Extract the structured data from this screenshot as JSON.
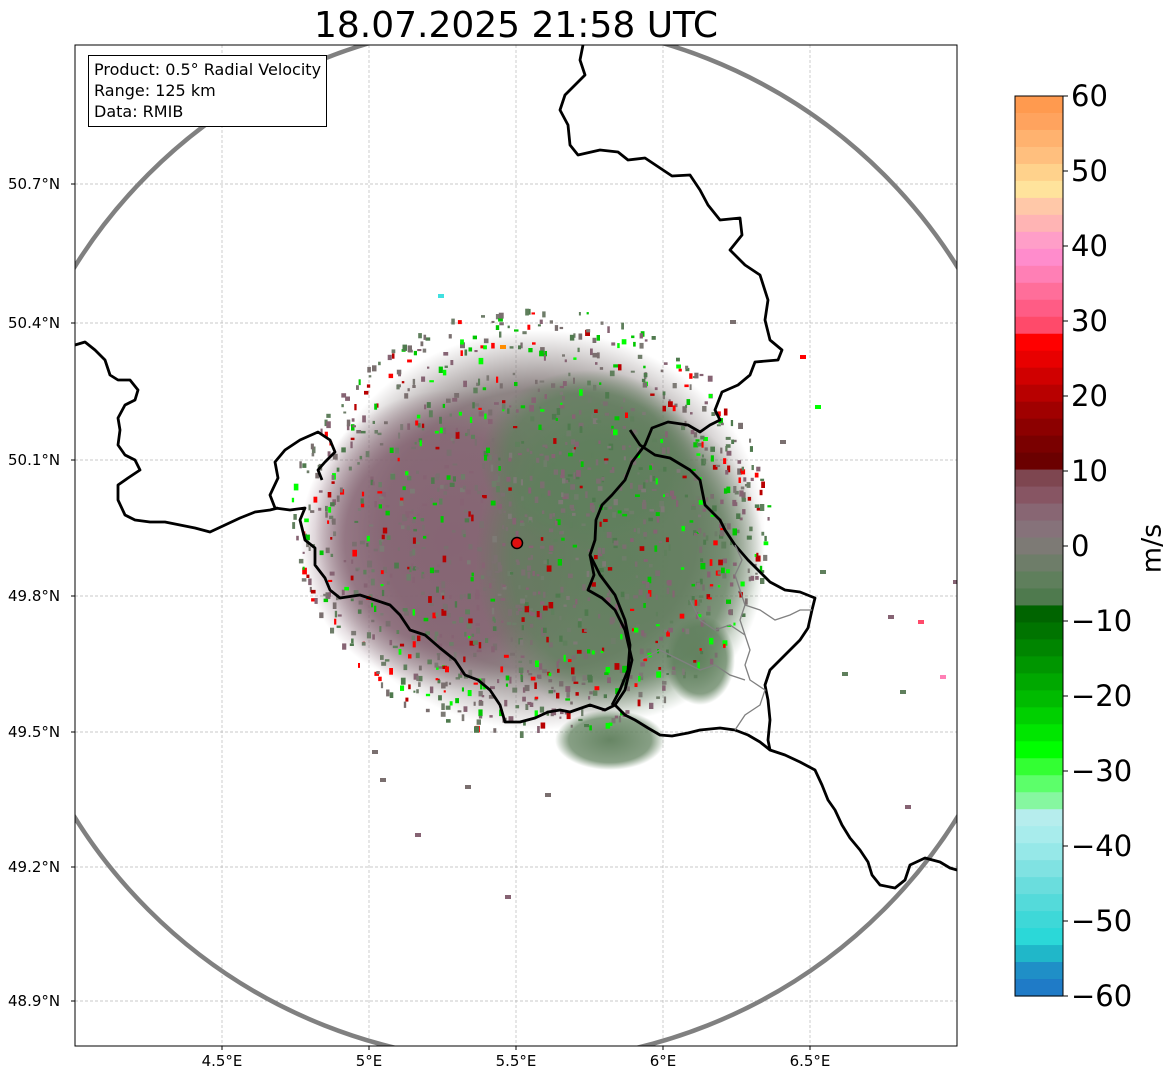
{
  "title": "18.07.2025 21:58 UTC",
  "info": {
    "product": "Product: 0.5° Radial Velocity",
    "range": "Range: 125 km",
    "data": "Data: RMIB"
  },
  "lat_labels": [
    "50.7°N",
    "50.4°N",
    "50.1°N",
    "49.8°N",
    "49.5°N",
    "49.2°N",
    "48.9°N"
  ],
  "lon_labels": [
    "4.5°E",
    "5°E",
    "5.5°E",
    "6°E",
    "6.5°E"
  ],
  "colorbar": {
    "unit": "m/s",
    "min": -60,
    "max": 60,
    "ticks": [
      "60",
      "50",
      "40",
      "30",
      "20",
      "10",
      "0",
      "−10",
      "−20",
      "−30",
      "−40",
      "−50",
      "−60"
    ]
  },
  "map_view": {
    "lon_range": [
      4.0,
      7.0
    ],
    "lat_range": [
      48.8,
      51.0
    ],
    "radar_site": {
      "lon": 5.505,
      "lat": 49.914
    },
    "range_ring_color": "#808080",
    "border_color": "#000000"
  },
  "colors": {
    "receding": "#ff0000",
    "approaching": "#00ff00",
    "near_zero": "#808080"
  }
}
